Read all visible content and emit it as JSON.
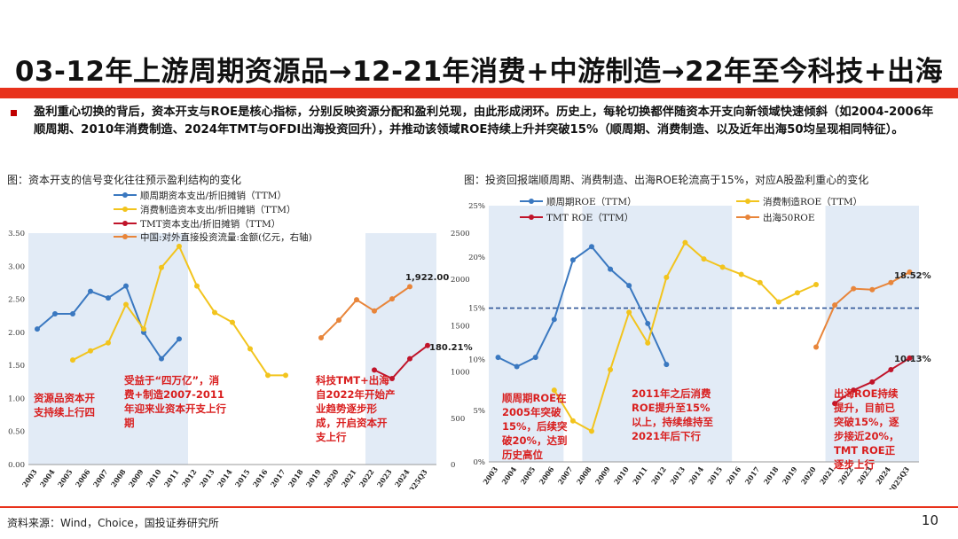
{
  "header": {
    "title": "03-12年上游周期资源品→12-21年消费+中游制造→22年至今科技+出海"
  },
  "summary": {
    "text": "盈利重心切换的背后，资本开支与ROE是核心指标，分别反映资源分配和盈利兑现，由此形成闭环。历史上，每轮切换都伴随资本开支向新领域快速倾斜（如2004-2006年顺周期、2010年消费制造、2024年TMT与OFDI出海投资回升），并推动该领域ROE持续上升并突破15%（顺周期、消费制造、以及近年出海50均呈现相同特征）。"
  },
  "left_chart": {
    "caption": "图：资本开支的信号变化往往预示盈利结构的变化",
    "annotations": {
      "a1": "资源品资本开支持续上行四",
      "a2": "受益于“四万亿”，消费+制造2007-2011年迎来业资本开支上行期",
      "a3": "科技TMT+出海自2022年开始产业趋势逐步形成，开启资本开支上行"
    },
    "label_1922": "1,922.00",
    "label_180": "180.21%"
  },
  "right_chart": {
    "caption": "图：投资回报端顺周期、消费制造、出海ROE轮流高于15%，对应A股盈利重心的变化",
    "annotations": {
      "b1": "顺周期ROE在2005年突破15%，后续突破20%，达到历史高位",
      "b2": "2011年之后消费ROE提升至15%以上，持续维持至2021年后下行",
      "b3": "出海ROE持续提升，目前已突破15%，逐步接近20%，TMT ROE正逐步上行"
    },
    "label_1852": "18.52%",
    "label_1013": "10.13%"
  },
  "footer": {
    "source": "资料来源：Wind，Choice，国投证券研究所",
    "page": "10"
  },
  "chart_data": [
    {
      "type": "line",
      "title": "",
      "categories": [
        "2003",
        "2004",
        "2005",
        "2006",
        "2007",
        "2008",
        "2009",
        "2010",
        "2011",
        "2012",
        "2013",
        "2014",
        "2015",
        "2016",
        "2017",
        "2018",
        "2019",
        "2020",
        "2021",
        "2022",
        "2023",
        "2024",
        "2025Q3"
      ],
      "ylim": [
        0,
        3.5
      ],
      "yticks": [
        "0.00",
        "0.50",
        "1.00",
        "1.50",
        "2.00",
        "2.50",
        "3.00",
        "3.50"
      ],
      "y2lim": [
        0,
        2500
      ],
      "y2ticks": [
        "0",
        "500",
        "1000",
        "1500",
        "2000",
        "2500"
      ],
      "shaded_periods": [
        [
          "2003",
          "2006"
        ],
        [
          "2007",
          "2011"
        ],
        [
          "2022",
          "2025Q3"
        ]
      ],
      "series": [
        {
          "name": "顺周期资本支出/折旧摊销（TTM）",
          "color": "#3a78c0",
          "axis": "left",
          "values": [
            2.05,
            2.28,
            2.28,
            2.62,
            2.52,
            2.7,
            2.0,
            1.6,
            1.9,
            null,
            null,
            null,
            null,
            null,
            null,
            null,
            null,
            null,
            null,
            null,
            null,
            null,
            null
          ]
        },
        {
          "name": "消费制造资本支出/折旧摊销（TTM）",
          "color": "#f2c41d",
          "axis": "left",
          "values": [
            null,
            null,
            1.58,
            1.72,
            1.84,
            2.42,
            2.05,
            2.98,
            3.3,
            2.7,
            2.3,
            2.15,
            1.75,
            1.35,
            1.35,
            null,
            null,
            null,
            null,
            null,
            null,
            null,
            null
          ]
        },
        {
          "name": "TMT资本支出/折旧摊销（TTM）",
          "color": "#c0142a",
          "axis": "left",
          "values": [
            null,
            null,
            null,
            null,
            null,
            null,
            null,
            null,
            null,
            null,
            null,
            null,
            null,
            null,
            null,
            null,
            null,
            null,
            null,
            1.43,
            1.3,
            1.6,
            1.8
          ]
        },
        {
          "name": "中国:对外直接投资流量:金额(亿元，右轴)",
          "color": "#e8853a",
          "axis": "right",
          "values": [
            null,
            null,
            null,
            null,
            null,
            null,
            null,
            null,
            null,
            null,
            null,
            null,
            null,
            null,
            null,
            null,
            1370,
            1560,
            1780,
            1660,
            1790,
            1922,
            null
          ]
        }
      ]
    },
    {
      "type": "line",
      "title": "",
      "categories": [
        "2003",
        "2004",
        "2005",
        "2006",
        "2007",
        "2008",
        "2009",
        "2010",
        "2011",
        "2012",
        "2013",
        "2014",
        "2015",
        "2016",
        "2017",
        "2018",
        "2019",
        "2020",
        "2021",
        "2022",
        "2023",
        "2024",
        "2025Q3"
      ],
      "ylim": [
        0,
        25
      ],
      "yticks": [
        "0%",
        "5%",
        "10%",
        "15%",
        "20%",
        "25%"
      ],
      "reference_line": 15,
      "shaded_periods": [
        [
          "2003",
          "2006"
        ],
        [
          "2008",
          "2015"
        ],
        [
          "2021",
          "2025Q3"
        ]
      ],
      "series": [
        {
          "name": "顺周期ROE（TTM）",
          "color": "#3a78c0",
          "values": [
            10.2,
            9.3,
            10.2,
            13.9,
            19.7,
            21.0,
            18.8,
            17.2,
            13.5,
            9.5,
            null,
            null,
            null,
            null,
            null,
            null,
            null,
            null,
            null,
            null,
            null,
            null,
            null
          ]
        },
        {
          "name": "消费制造ROE（TTM）",
          "color": "#f2c41d",
          "values": [
            null,
            null,
            null,
            7.0,
            4.0,
            3.0,
            9.0,
            14.6,
            11.6,
            18.0,
            21.4,
            19.8,
            19.0,
            18.3,
            17.5,
            15.6,
            16.5,
            17.3,
            null,
            null,
            null,
            null,
            null
          ]
        },
        {
          "name": "TMT ROE（TTM）",
          "color": "#c0142a",
          "values": [
            null,
            null,
            null,
            null,
            null,
            null,
            null,
            null,
            null,
            null,
            null,
            null,
            null,
            null,
            null,
            null,
            null,
            null,
            5.7,
            7.0,
            7.8,
            9.0,
            10.13
          ]
        },
        {
          "name": "出海50ROE",
          "color": "#e8853a",
          "values": [
            null,
            null,
            null,
            null,
            null,
            null,
            null,
            null,
            null,
            null,
            null,
            null,
            null,
            null,
            null,
            null,
            null,
            11.2,
            15.3,
            16.9,
            16.8,
            17.5,
            18.52
          ]
        }
      ]
    }
  ]
}
